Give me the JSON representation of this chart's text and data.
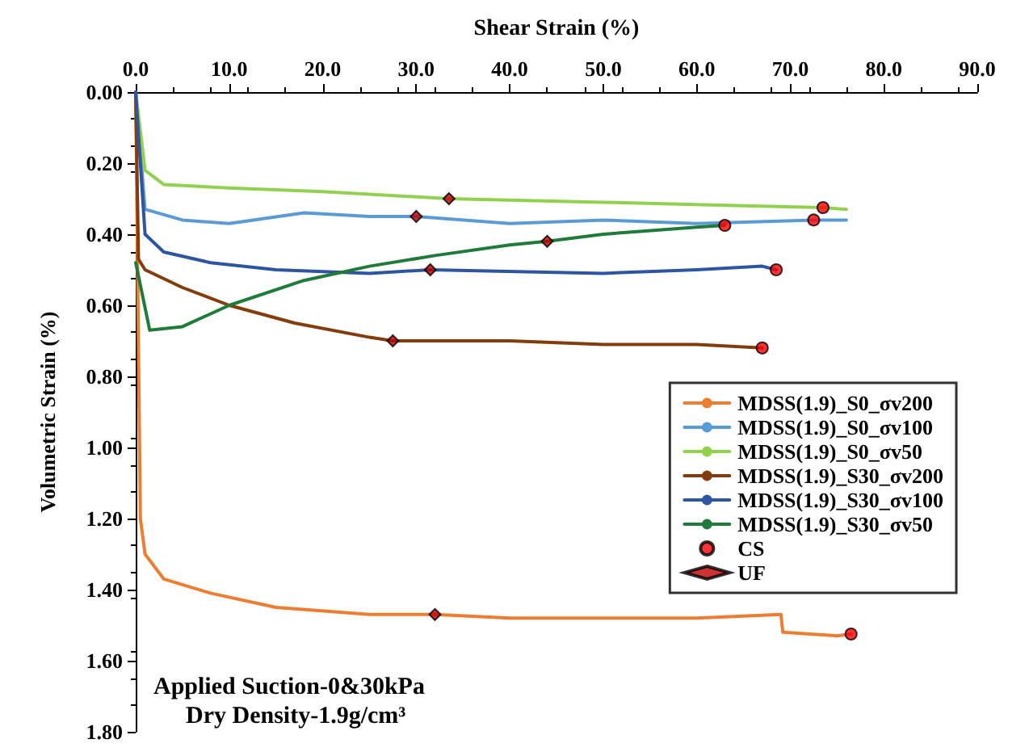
{
  "chart_data": {
    "type": "line",
    "xlabel": "Shear Strain (%)",
    "ylabel": "Volumetric Strain (%)",
    "xlim": [
      0,
      90
    ],
    "xticks": [
      {
        "value": 0,
        "label": "0.0"
      },
      {
        "value": 10,
        "label": "10.0"
      },
      {
        "value": 20,
        "label": "20.0"
      },
      {
        "value": 30,
        "label": "30.0"
      },
      {
        "value": 40,
        "label": "40.0"
      },
      {
        "value": 50,
        "label": "50.0"
      },
      {
        "value": 60,
        "label": "60.0"
      },
      {
        "value": 70,
        "label": "70.0"
      },
      {
        "value": 80,
        "label": "80.0"
      },
      {
        "value": 90,
        "label": "90.0"
      }
    ],
    "ylim": [
      1.8,
      0
    ],
    "yticks": [
      {
        "value": 0,
        "label": "0.00"
      },
      {
        "value": 0.2,
        "label": "0.20"
      },
      {
        "value": 0.4,
        "label": "0.40"
      },
      {
        "value": 0.6,
        "label": "0.60"
      },
      {
        "value": 0.8,
        "label": "0.80"
      },
      {
        "value": 1,
        "label": "1.00"
      },
      {
        "value": 1.2,
        "label": "1.20"
      },
      {
        "value": 1.4,
        "label": "1.40"
      },
      {
        "value": 1.6,
        "label": "1.60"
      },
      {
        "value": 1.8,
        "label": "1.80"
      }
    ],
    "grid": false,
    "legend": "right",
    "marker": "none",
    "line_style": "solid",
    "annotations": [
      "Applied Suction-0&30kPa",
      "Dry Density-1.9g/cm³"
    ],
    "series": [
      {
        "name": "MDSS(1.9)_S0_σv200",
        "color": "#ed7d31",
        "x": [
          0,
          0.5,
          1,
          3,
          8,
          15,
          25,
          32,
          40,
          50,
          60,
          69,
          69.2,
          75,
          76.5
        ],
        "values": [
          0,
          1.2,
          1.3,
          1.37,
          1.41,
          1.45,
          1.47,
          1.47,
          1.48,
          1.48,
          1.48,
          1.47,
          1.52,
          1.53,
          1.525
        ]
      },
      {
        "name": "MDSS(1.9)_S0_σv100",
        "color": "#5b9bd5",
        "x": [
          0,
          1,
          5,
          10,
          18,
          25,
          30,
          40,
          50,
          60,
          72.5,
          76
        ],
        "values": [
          0,
          0.33,
          0.36,
          0.37,
          0.34,
          0.35,
          0.35,
          0.37,
          0.36,
          0.37,
          0.36,
          0.36
        ]
      },
      {
        "name": "MDSS(1.9)_S0_σv50",
        "color": "#92d050",
        "x": [
          0,
          1,
          3,
          10,
          20,
          33.5,
          50,
          65,
          73.5,
          76
        ],
        "values": [
          0,
          0.22,
          0.26,
          0.27,
          0.28,
          0.3,
          0.31,
          0.32,
          0.325,
          0.33
        ]
      },
      {
        "name": "MDSS(1.9)_S30_σv200",
        "color": "#843c0c",
        "x": [
          0,
          0.3,
          1,
          5,
          10,
          17,
          25,
          27.5,
          40,
          50,
          60,
          67
        ],
        "values": [
          0,
          0.47,
          0.5,
          0.55,
          0.6,
          0.65,
          0.69,
          0.7,
          0.7,
          0.71,
          0.71,
          0.72
        ]
      },
      {
        "name": "MDSS(1.9)_S30_σv100",
        "color": "#2e55a0",
        "x": [
          0,
          1,
          3,
          8,
          15,
          25,
          31.5,
          50,
          60,
          67,
          68.5
        ],
        "values": [
          0,
          0.4,
          0.45,
          0.48,
          0.5,
          0.51,
          0.5,
          0.51,
          0.5,
          0.49,
          0.5
        ]
      },
      {
        "name": "MDSS(1.9)_S30_σv50",
        "color": "#1e7b3a",
        "x": [
          0,
          1.5,
          5,
          10,
          18,
          25,
          32,
          40,
          44,
          50,
          60,
          63
        ],
        "values": [
          0.48,
          0.67,
          0.66,
          0.6,
          0.53,
          0.49,
          0.46,
          0.43,
          0.42,
          0.4,
          0.38,
          0.375
        ]
      },
      {
        "name": "CS",
        "type": "scatter",
        "marker": "circle",
        "color": "#ff0000",
        "x": [
          76.5,
          72.5,
          73.5,
          67,
          68.5,
          63
        ],
        "values": [
          1.525,
          0.36,
          0.325,
          0.72,
          0.5,
          0.375
        ]
      },
      {
        "name": "UF",
        "type": "scatter",
        "marker": "diamond",
        "color": "#c00000",
        "x": [
          32,
          30,
          33.5,
          27.5,
          31.5,
          44
        ],
        "values": [
          1.47,
          0.35,
          0.3,
          0.7,
          0.5,
          0.42
        ]
      }
    ]
  }
}
